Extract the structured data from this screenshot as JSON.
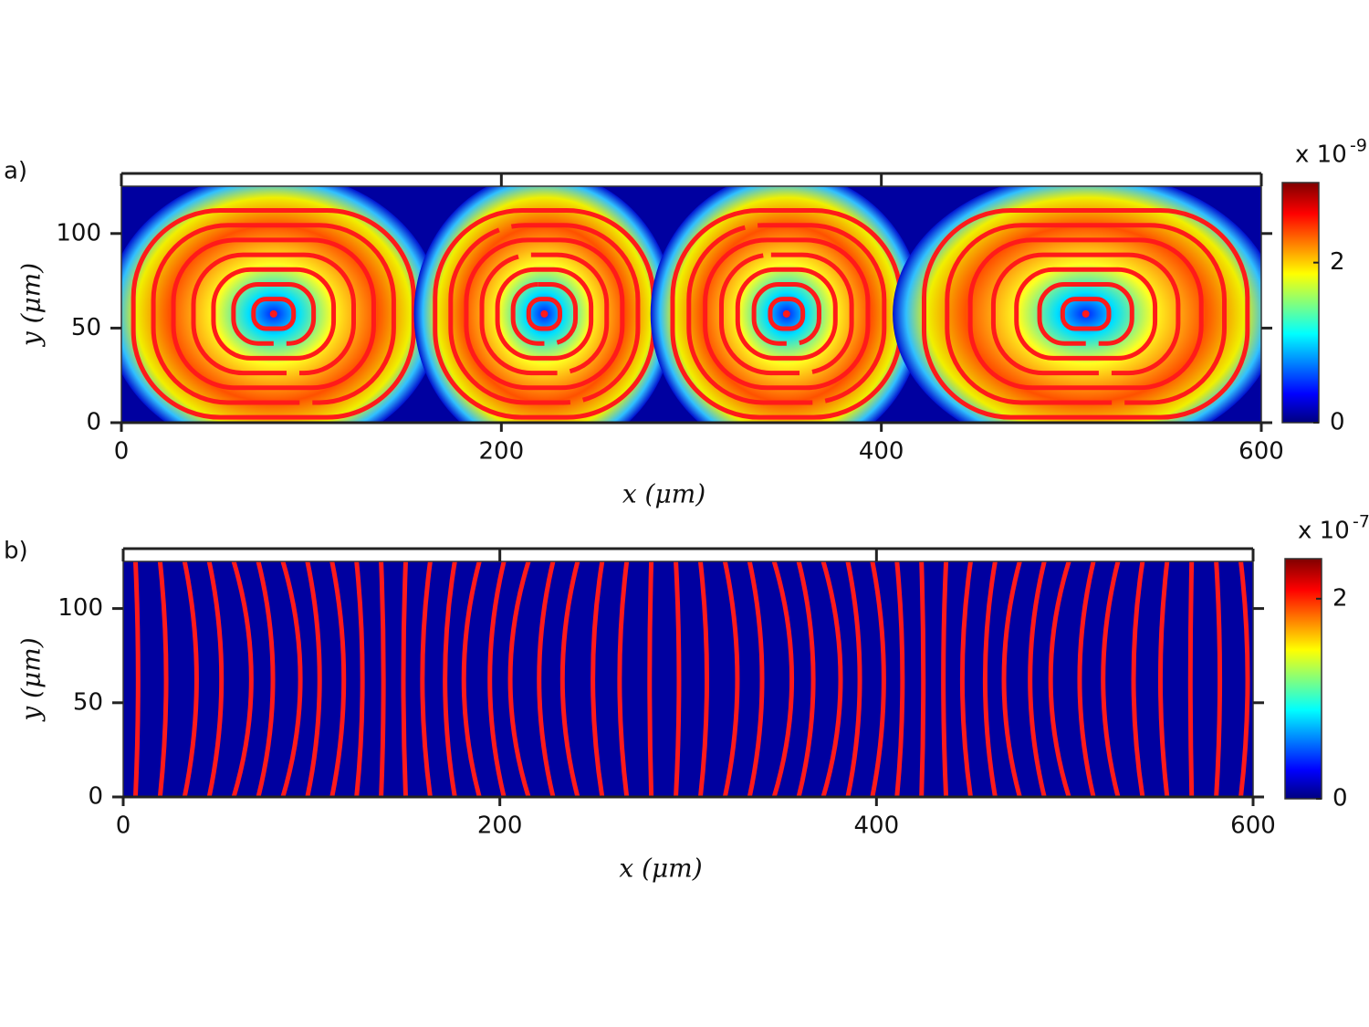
{
  "chart_data": [
    {
      "type": "streamplot",
      "panel_label": "a)",
      "xlabel": "x (μm)",
      "ylabel": "y (μm)",
      "xlim": [
        0,
        600
      ],
      "ylim": [
        0,
        125
      ],
      "xticks": [
        0,
        200,
        400,
        600
      ],
      "yticks": [
        0,
        50,
        100
      ],
      "colorbar_label": "x 10",
      "colorbar_exponent": "-9",
      "colorbar_lim": [
        0,
        3
      ],
      "colorbar_ticks": [
        0,
        2
      ]
    },
    {
      "type": "streamplot",
      "panel_label": "b)",
      "xlabel": "x (μm)",
      "ylabel": "y (μm)",
      "xlim": [
        0,
        600
      ],
      "ylim": [
        0,
        125
      ],
      "xticks": [
        0,
        200,
        400,
        600
      ],
      "yticks": [
        0,
        50,
        100
      ],
      "colorbar_label": "x 10",
      "colorbar_exponent": "-7",
      "colorbar_lim": [
        0,
        2.4
      ],
      "colorbar_ticks": [
        0,
        2
      ]
    }
  ]
}
